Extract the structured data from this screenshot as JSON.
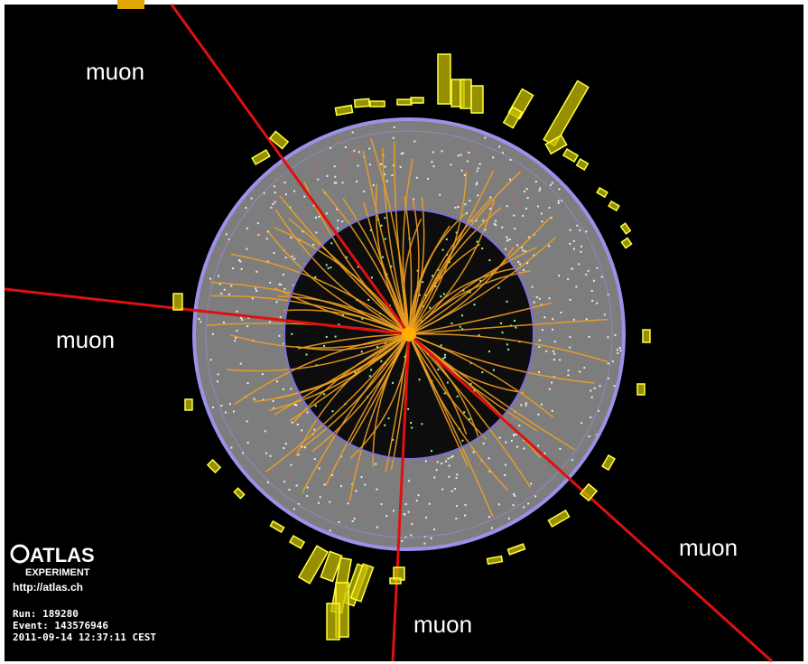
{
  "muon_labels": [
    "muon",
    "muon",
    "muon",
    "muon"
  ],
  "logo": {
    "name": "ATLAS",
    "subtitle": "EXPERIMENT",
    "url": "http://atlas.ch"
  },
  "event_info": {
    "run": "Run: 189280",
    "event": "Event: 143576946",
    "timestamp": "2011-09-14 12:37:11 CEST"
  }
}
